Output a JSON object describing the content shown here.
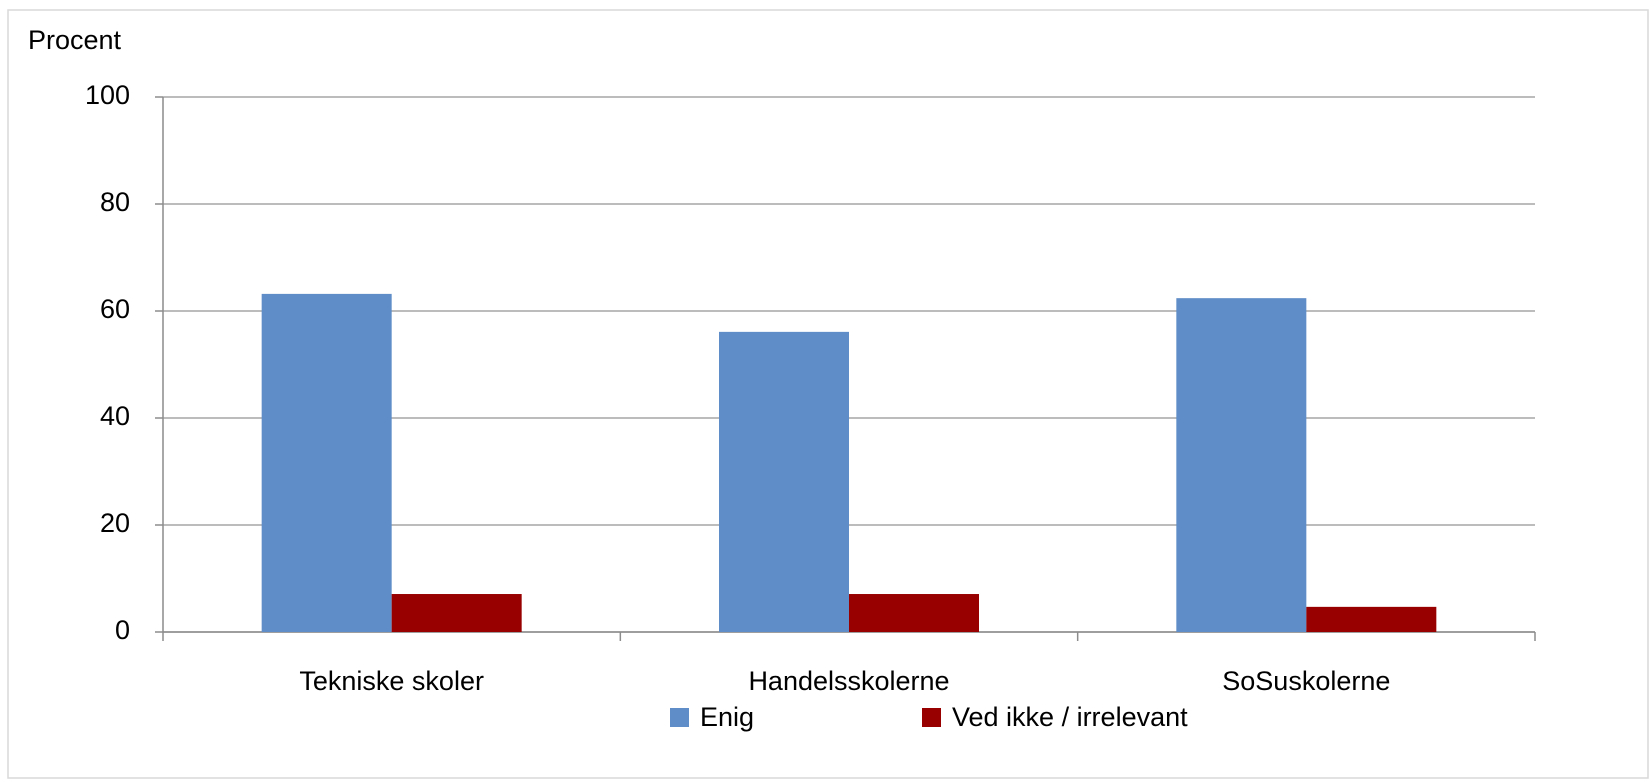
{
  "chart_data": {
    "type": "bar",
    "y_label": "Procent",
    "categories": [
      "Tekniske skoler",
      "Handelsskolerne",
      "SoSuskolerne"
    ],
    "series": [
      {
        "name": "Enig",
        "color": "#5f8dc7",
        "values": [
          63.2,
          56.1,
          62.4
        ]
      },
      {
        "name": "Ved ikke / irrelevant",
        "color": "#980000",
        "values": [
          7.1,
          7.1,
          4.7
        ]
      }
    ],
    "ylim": [
      0,
      100
    ],
    "yticks": [
      0,
      20,
      40,
      60,
      80,
      100
    ],
    "grid": true,
    "legend": "bottom"
  }
}
